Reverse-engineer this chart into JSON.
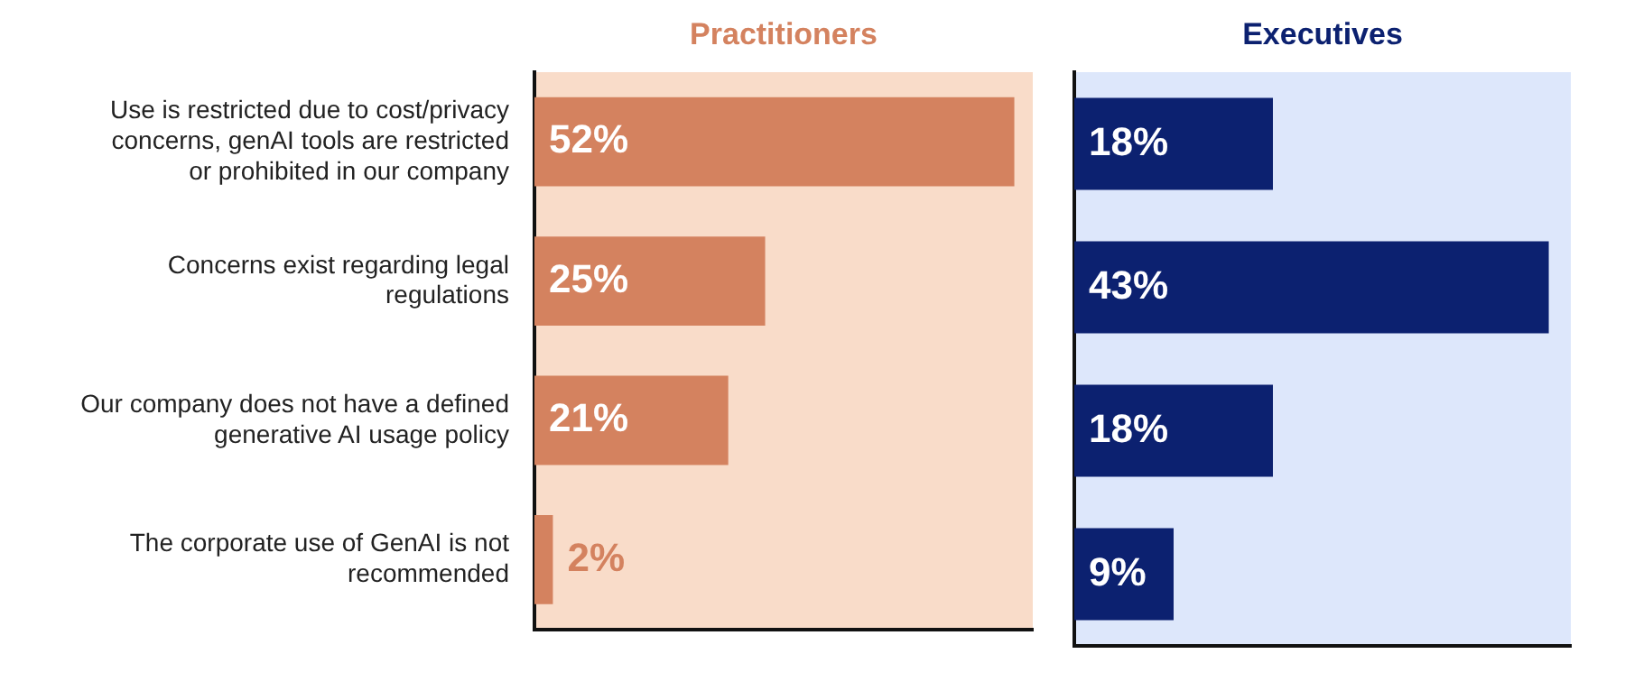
{
  "chart_data": [
    {
      "type": "bar",
      "orientation": "horizontal",
      "title": "Practitioners",
      "categories": [
        "Use is restricted due to cost/privacy concerns, genAI tools are restricted or prohibited in our company",
        "Concerns exist regarding legal regulations",
        "Our company does not have a defined generative AI usage policy",
        "The corporate use of GenAI is not recommended"
      ],
      "values": [
        52,
        25,
        21,
        2
      ],
      "value_labels": [
        "52%",
        "25%",
        "21%",
        "2%"
      ],
      "color": "#d4825f",
      "xlim": [
        0,
        54
      ],
      "tick_labels": "y",
      "grid": false,
      "legend": false
    },
    {
      "type": "bar",
      "orientation": "horizontal",
      "title": "Executives",
      "categories": [
        null,
        null,
        null,
        null
      ],
      "values": [
        18,
        43,
        18,
        9
      ],
      "value_labels": [
        "18%",
        "43%",
        "18%",
        "9%"
      ],
      "color": "#0c2170",
      "xlim": [
        0,
        45
      ],
      "tick_labels": false,
      "grid": false,
      "legend": false
    }
  ]
}
